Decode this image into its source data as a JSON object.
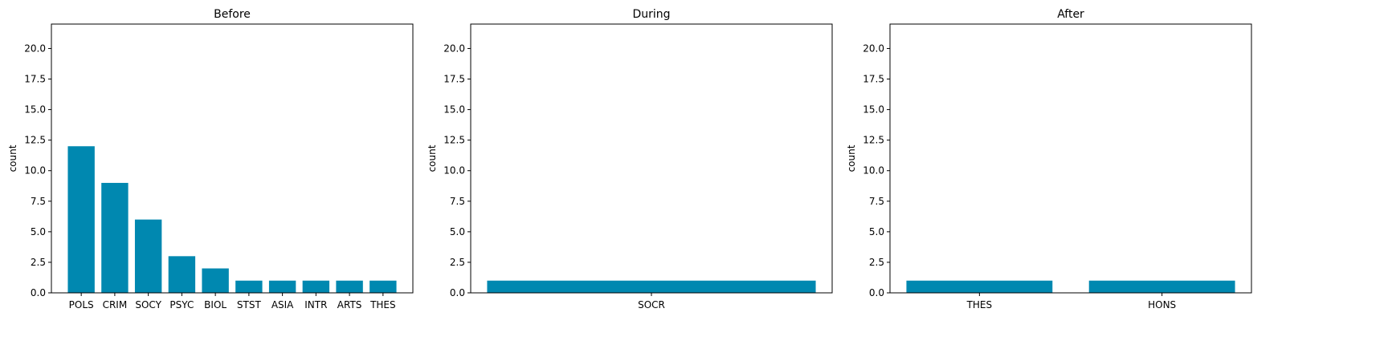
{
  "bar_color": "#0088b0",
  "chart_data": [
    {
      "type": "bar",
      "title": "Before",
      "xlabel": "",
      "ylabel": "count",
      "ylim": [
        0,
        22
      ],
      "yticks": [
        "0.0",
        "2.5",
        "5.0",
        "7.5",
        "10.0",
        "12.5",
        "15.0",
        "17.5",
        "20.0"
      ],
      "categories": [
        "POLS",
        "CRIM",
        "SOCY",
        "PSYC",
        "BIOL",
        "STST",
        "ASIA",
        "INTR",
        "ARTS",
        "THES"
      ],
      "values": [
        12,
        9,
        6,
        3,
        2,
        1,
        1,
        1,
        1,
        1
      ],
      "grid": false
    },
    {
      "type": "bar",
      "title": "During",
      "xlabel": "",
      "ylabel": "count",
      "ylim": [
        0,
        22
      ],
      "yticks": [
        "0.0",
        "2.5",
        "5.0",
        "7.5",
        "10.0",
        "12.5",
        "15.0",
        "17.5",
        "20.0"
      ],
      "categories": [
        "SOCR"
      ],
      "values": [
        1
      ],
      "grid": false
    },
    {
      "type": "bar",
      "title": "After",
      "xlabel": "",
      "ylabel": "count",
      "ylim": [
        0,
        22
      ],
      "yticks": [
        "0.0",
        "2.5",
        "5.0",
        "7.5",
        "10.0",
        "12.5",
        "15.0",
        "17.5",
        "20.0"
      ],
      "categories": [
        "THES",
        "HONS"
      ],
      "values": [
        1,
        1
      ],
      "grid": false
    }
  ]
}
